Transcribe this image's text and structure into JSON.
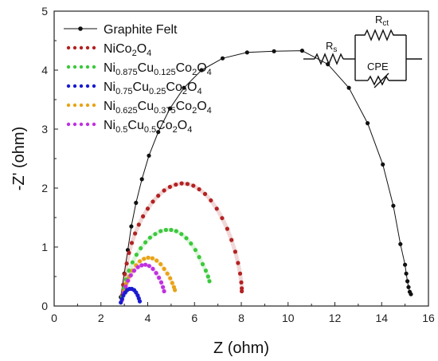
{
  "chart_data": {
    "type": "scatter",
    "title": "",
    "xlabel": "Z (ohm)",
    "ylabel": "-Z' (ohm)",
    "xlim": [
      0,
      16
    ],
    "ylim": [
      0,
      5
    ],
    "x_ticks": [
      0,
      2,
      4,
      6,
      8,
      10,
      12,
      14,
      16
    ],
    "y_ticks": [
      0,
      1,
      2,
      3,
      4,
      5
    ],
    "grid": false,
    "legend_position": "top-left",
    "series": [
      {
        "name": "Graphite Felt",
        "color": "#111111",
        "style": "line-markers",
        "x": [
          2.85,
          3.0,
          3.15,
          3.3,
          3.5,
          3.75,
          4.05,
          4.45,
          4.95,
          5.55,
          6.3,
          7.2,
          8.25,
          9.4,
          10.6,
          11.7,
          12.6,
          13.4,
          14.05,
          14.5,
          14.8,
          15.0,
          15.05,
          15.1,
          15.15,
          15.2,
          15.25
        ],
        "y": [
          0.15,
          0.55,
          0.95,
          1.35,
          1.75,
          2.15,
          2.55,
          2.95,
          3.35,
          3.7,
          4.0,
          4.2,
          4.3,
          4.32,
          4.33,
          4.1,
          3.7,
          3.1,
          2.4,
          1.7,
          1.05,
          0.7,
          0.55,
          0.42,
          0.32,
          0.24,
          0.2
        ]
      },
      {
        "name": "NiCo2O4",
        "color": "#b22222",
        "style": "markers",
        "x": [
          2.9,
          2.95,
          3.02,
          3.1,
          3.2,
          3.32,
          3.46,
          3.62,
          3.8,
          4.0,
          4.22,
          4.45,
          4.7,
          4.95,
          5.2,
          5.45,
          5.7,
          5.95,
          6.2,
          6.45,
          6.7,
          6.95,
          7.18,
          7.4,
          7.58,
          7.74,
          7.86,
          7.95,
          8.0,
          8.02,
          8.02
        ],
        "y": [
          0.18,
          0.36,
          0.54,
          0.72,
          0.9,
          1.07,
          1.23,
          1.38,
          1.52,
          1.65,
          1.77,
          1.87,
          1.96,
          2.02,
          2.06,
          2.08,
          2.07,
          2.04,
          1.98,
          1.9,
          1.79,
          1.65,
          1.49,
          1.31,
          1.12,
          0.92,
          0.73,
          0.55,
          0.4,
          0.3,
          0.25
        ]
      },
      {
        "name": "Ni0.875Cu0.125Co2O4",
        "color": "#3cc83c",
        "style": "markers",
        "x": [
          2.9,
          2.98,
          3.08,
          3.2,
          3.35,
          3.52,
          3.7,
          3.9,
          4.1,
          4.32,
          4.55,
          4.78,
          5.0,
          5.22,
          5.44,
          5.65,
          5.85,
          6.04,
          6.2,
          6.35,
          6.48,
          6.58,
          6.64
        ],
        "y": [
          0.15,
          0.3,
          0.45,
          0.6,
          0.74,
          0.87,
          0.98,
          1.08,
          1.16,
          1.22,
          1.27,
          1.29,
          1.29,
          1.27,
          1.22,
          1.15,
          1.06,
          0.95,
          0.83,
          0.71,
          0.6,
          0.5,
          0.42
        ]
      },
      {
        "name": "Ni0.75Cu0.25Co2O4",
        "color": "#1a1ad0",
        "style": "markers",
        "x": [
          2.85,
          2.9,
          2.96,
          3.04,
          3.12,
          3.22,
          3.32,
          3.42,
          3.5,
          3.57,
          3.62,
          3.66
        ],
        "y": [
          0.06,
          0.12,
          0.18,
          0.23,
          0.27,
          0.29,
          0.29,
          0.27,
          0.23,
          0.18,
          0.13,
          0.08
        ]
      },
      {
        "name": "Ni0.625Cu0.375Co2O4",
        "color": "#e8a317",
        "style": "markers",
        "x": [
          2.9,
          2.98,
          3.08,
          3.2,
          3.34,
          3.5,
          3.66,
          3.84,
          4.02,
          4.2,
          4.38,
          4.55,
          4.7,
          4.84,
          4.96,
          5.05,
          5.12,
          5.16
        ],
        "y": [
          0.12,
          0.25,
          0.38,
          0.5,
          0.6,
          0.69,
          0.76,
          0.8,
          0.82,
          0.81,
          0.77,
          0.71,
          0.63,
          0.55,
          0.47,
          0.39,
          0.32,
          0.27
        ]
      },
      {
        "name": "Ni0.5Cu0.5Co2O4",
        "color": "#c030e0",
        "style": "markers",
        "x": [
          2.9,
          2.97,
          3.06,
          3.16,
          3.28,
          3.42,
          3.58,
          3.74,
          3.9,
          4.06,
          4.22,
          4.36,
          4.48,
          4.58,
          4.65,
          4.7
        ],
        "y": [
          0.1,
          0.22,
          0.33,
          0.43,
          0.52,
          0.6,
          0.66,
          0.69,
          0.7,
          0.68,
          0.63,
          0.56,
          0.48,
          0.4,
          0.32,
          0.25
        ]
      }
    ]
  },
  "legend": [
    {
      "base": "Graphite Felt",
      "parts": [
        [
          "Graphite Felt",
          false
        ]
      ]
    },
    {
      "base": "NiCo2O4",
      "parts": [
        [
          "NiCo",
          false
        ],
        [
          "2",
          true
        ],
        [
          "O",
          false
        ],
        [
          "4",
          true
        ]
      ]
    },
    {
      "base": "Ni0.875Cu0.125Co2O4",
      "parts": [
        [
          "Ni",
          false
        ],
        [
          "0.875",
          true
        ],
        [
          "Cu",
          false
        ],
        [
          "0.125",
          true
        ],
        [
          "Co",
          false
        ],
        [
          "2",
          true
        ],
        [
          "O",
          false
        ],
        [
          "4",
          true
        ]
      ]
    },
    {
      "base": "Ni0.75Cu0.25Co2O4",
      "parts": [
        [
          "Ni",
          false
        ],
        [
          "0.75",
          true
        ],
        [
          "Cu",
          false
        ],
        [
          "0.25",
          true
        ],
        [
          "Co",
          false
        ],
        [
          "2",
          true
        ],
        [
          "O",
          false
        ],
        [
          "4",
          true
        ]
      ]
    },
    {
      "base": "Ni0.625Cu0.375Co2O4",
      "parts": [
        [
          "Ni",
          false
        ],
        [
          "0.625",
          true
        ],
        [
          "Cu",
          false
        ],
        [
          "0.375",
          true
        ],
        [
          "Co",
          false
        ],
        [
          "2",
          true
        ],
        [
          "O",
          false
        ],
        [
          "4",
          true
        ]
      ]
    },
    {
      "base": "Ni0.5Cu0.5Co2O4",
      "parts": [
        [
          "Ni",
          false
        ],
        [
          "0.5",
          true
        ],
        [
          "Cu",
          false
        ],
        [
          "0.5",
          true
        ],
        [
          "Co",
          false
        ],
        [
          "2",
          true
        ],
        [
          "O",
          false
        ],
        [
          "4",
          true
        ]
      ]
    }
  ],
  "circuit": {
    "rs_label": "R",
    "rs_sub": "s",
    "rct_label": "R",
    "rct_sub": "ct",
    "cpe_label": "CPE"
  }
}
